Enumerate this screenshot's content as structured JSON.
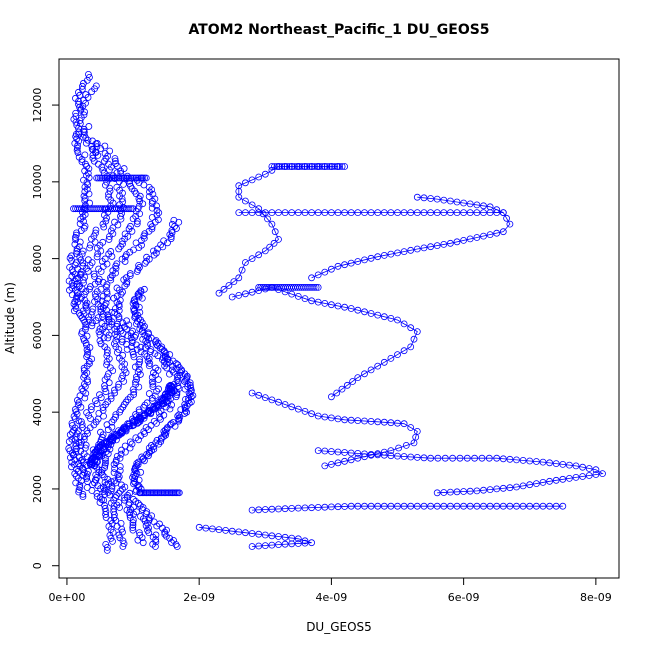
{
  "chart_data": {
    "type": "scatter",
    "title": "ATOM2 Northeast_Pacific_1 DU_GEOS5",
    "xlabel": "DU_GEOS5",
    "ylabel": "Altitude (m)",
    "xlim": [
      -1.2e-10,
      8.35e-09
    ],
    "ylim": [
      -320,
      13200
    ],
    "x_ticks": [
      0,
      2e-09,
      4e-09,
      6e-09,
      8e-09
    ],
    "x_tick_labels": [
      "0e+00",
      "2e-09",
      "4e-09",
      "6e-09",
      "8e-09"
    ],
    "y_ticks": [
      0,
      2000,
      4000,
      6000,
      8000,
      10000,
      12000
    ],
    "y_tick_labels": [
      "0",
      "2000",
      "4000",
      "6000",
      "8000",
      "10000",
      "12000"
    ],
    "marker": "open-circle",
    "color": "#0000ff",
    "series": [
      {
        "x": [
          4.1e-09,
          3.7e-09,
          3.2e-09,
          3e-09,
          2.6e-09,
          2.6e-09,
          2.9e-09,
          3.1e-09,
          3.2e-09,
          3e-09,
          2.7e-09,
          2.6e-09,
          2.3e-09
        ],
        "y": [
          10400,
          10400,
          10400,
          10200,
          9900,
          9600,
          9300,
          8900,
          8500,
          8200,
          7900,
          7500,
          7100
        ]
      },
      {
        "x": [
          5.3e-09,
          5.6e-09,
          6e-09,
          6.4e-09,
          6.6e-09,
          6.7e-09,
          6.6e-09,
          6.2e-09,
          5.8e-09,
          5.3e-09,
          4.7e-09,
          4.1e-09,
          3.7e-09
        ],
        "y": [
          9600,
          9550,
          9450,
          9350,
          9200,
          8900,
          8700,
          8550,
          8400,
          8250,
          8050,
          7800,
          7500
        ]
      },
      {
        "x": [
          2.6e-09,
          3.2e-09,
          3.8e-09,
          4.4e-09,
          5e-09,
          5.6e-09,
          6.2e-09,
          6.6e-09
        ],
        "y": [
          9200,
          9200,
          9200,
          9200,
          9200,
          9200,
          9200,
          9200
        ]
      },
      {
        "x": [
          2.5e-09,
          3.1e-09,
          3.7e-09,
          4.3e-09,
          5e-09,
          5.3e-09,
          5.2e-09,
          4.8e-09,
          4.4e-09,
          4e-09
        ],
        "y": [
          7000,
          7250,
          6900,
          6700,
          6400,
          6100,
          5700,
          5300,
          4900,
          4400
        ]
      },
      {
        "x": [
          2.8e-09,
          3.3e-09,
          3.8e-09,
          4.2e-09,
          4.7e-09,
          5.1e-09,
          5.3e-09,
          5.25e-09,
          4.9e-09,
          4.4e-09,
          3.9e-09
        ],
        "y": [
          4500,
          4200,
          3900,
          3800,
          3750,
          3700,
          3500,
          3200,
          3000,
          2800,
          2600
        ]
      },
      {
        "x": [
          3.8e-09,
          4.6e-09,
          5.5e-09,
          6.5e-09,
          7.2e-09,
          7.7e-09,
          8e-09,
          8.1e-09,
          7.7e-09,
          7.3e-09,
          6.8e-09,
          6.2e-09,
          5.6e-09
        ],
        "y": [
          3000,
          2900,
          2800,
          2800,
          2700,
          2600,
          2500,
          2400,
          2300,
          2200,
          2050,
          1950,
          1900
        ]
      },
      {
        "x": [
          2.8e-09,
          3.5e-09,
          4.3e-09,
          5.1e-09,
          5.9e-09,
          6.6e-09,
          7.5e-09
        ],
        "y": [
          1450,
          1500,
          1550,
          1550,
          1550,
          1550,
          1550
        ]
      },
      {
        "x": [
          2e-09,
          2.5e-09,
          3e-09,
          3.5e-09,
          3.7e-09,
          3.2e-09,
          2.8e-09
        ],
        "y": [
          1000,
          900,
          800,
          700,
          600,
          550,
          500
        ]
      }
    ]
  }
}
